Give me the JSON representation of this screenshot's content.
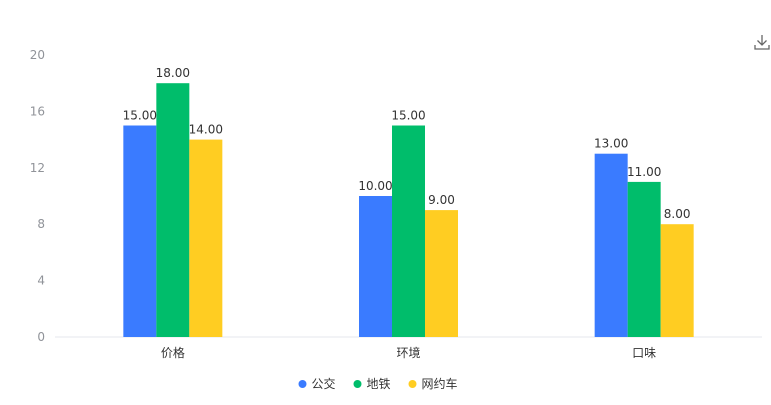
{
  "chart_data": {
    "type": "bar",
    "categories": [
      "价格",
      "环境",
      "口味"
    ],
    "series": [
      {
        "name": "公交",
        "color": "#3a7bff",
        "values": [
          15,
          10,
          13
        ]
      },
      {
        "name": "地铁",
        "color": "#00bd6b",
        "values": [
          18,
          15,
          11
        ]
      },
      {
        "name": "网约车",
        "color": "#ffcd22",
        "values": [
          14,
          9,
          8
        ]
      }
    ],
    "ylim": [
      0,
      20
    ],
    "yticks": [
      0,
      4,
      8,
      12,
      16,
      20
    ],
    "value_format_decimals": 2,
    "grid": false,
    "legend_position": "bottom-center"
  },
  "toolbar": {
    "download_icon": "download-icon"
  }
}
